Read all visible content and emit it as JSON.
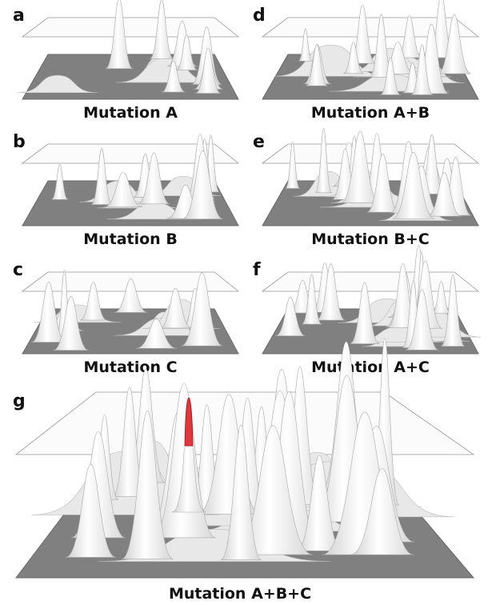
{
  "panels": [
    {
      "letter": "a",
      "caption": "Mutation A"
    },
    {
      "letter": "b",
      "caption": "Mutation B"
    },
    {
      "letter": "c",
      "caption": "Mutation C"
    },
    {
      "letter": "d",
      "caption": "Mutation A+B"
    },
    {
      "letter": "e",
      "caption": "Mutation B+C"
    },
    {
      "letter": "f",
      "caption": "Mutation A+C"
    },
    {
      "letter": "g",
      "caption": "Mutation A+B+C"
    }
  ]
}
